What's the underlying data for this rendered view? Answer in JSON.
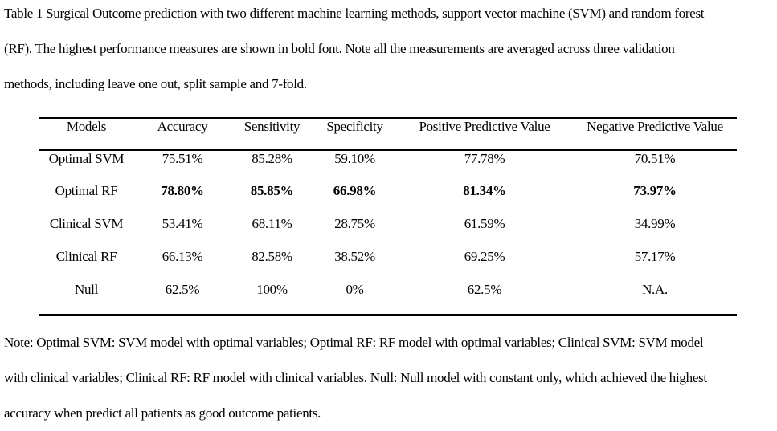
{
  "page": {
    "background": "#ffffff",
    "text_color": "#000000"
  },
  "caption": {
    "lines": [
      "Table 1 Surgical Outcome prediction with two different machine learning methods, support vector machine (SVM) and random forest",
      "(RF). The highest performance measures are shown in bold font. Note all the measurements are averaged across three validation",
      "methods, including leave one out, split sample and 7-fold."
    ]
  },
  "table": {
    "headers": [
      "Models",
      "Accuracy",
      "Sensitivity",
      "Specificity",
      "Positive Predictive Value",
      "Negative Predictive Value"
    ],
    "rows": [
      {
        "model": "Optimal SVM",
        "accuracy": "75.51%",
        "sensitivity": "85.28%",
        "specificity": "59.10%",
        "ppv": "77.78%",
        "npv": "70.51%",
        "bold_values": false
      },
      {
        "model": "Optimal RF",
        "accuracy": "78.80%",
        "sensitivity": "85.85%",
        "specificity": "66.98%",
        "ppv": "81.34%",
        "npv": "73.97%",
        "bold_values": true
      },
      {
        "model": "Clinical SVM",
        "accuracy": "53.41%",
        "sensitivity": "68.11%",
        "specificity": "28.75%",
        "ppv": "61.59%",
        "npv": "34.99%",
        "bold_values": false
      },
      {
        "model": "Clinical RF",
        "accuracy": "66.13%",
        "sensitivity": "82.58%",
        "specificity": "38.52%",
        "ppv": "69.25%",
        "npv": "57.17%",
        "bold_values": false
      },
      {
        "model": "Null",
        "accuracy": "62.5%",
        "sensitivity": "100%",
        "specificity": "0%",
        "ppv": "62.5%",
        "npv": "N.A.",
        "bold_values": false
      }
    ]
  },
  "note": {
    "lines": [
      "Note: Optimal SVM: SVM model with optimal variables; Optimal RF: RF model with optimal variables; Clinical SVM: SVM model",
      "with clinical variables; Clinical RF: RF model with clinical variables. Null: Null model with constant only, which achieved the highest",
      "accuracy when predict all patients as good outcome patients."
    ]
  }
}
